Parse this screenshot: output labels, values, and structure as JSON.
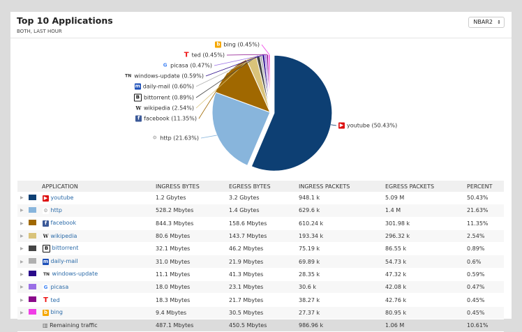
{
  "header": {
    "title": "Top 10 Applications",
    "subtitle": "BOTH, LAST HOUR",
    "select_value": "NBAR2"
  },
  "chart_data": {
    "type": "pie",
    "slices": [
      {
        "name": "youtube",
        "percent": 50.43,
        "color": "#0d3f73",
        "label": "youtube (50.43%)"
      },
      {
        "name": "http",
        "percent": 21.63,
        "color": "#88b5dc",
        "label": "http (21.63%)"
      },
      {
        "name": "facebook",
        "percent": 11.35,
        "color": "#a06800",
        "label": "facebook (11.35%)"
      },
      {
        "name": "wikipedia",
        "percent": 2.54,
        "color": "#d9c37a",
        "label": "wikipedia (2.54%)"
      },
      {
        "name": "bittorrent",
        "percent": 0.89,
        "color": "#444444",
        "label": "bittorrent (0.89%)"
      },
      {
        "name": "daily-mail",
        "percent": 0.6,
        "color": "#b0b0b0",
        "label": "daily-mail (0.60%)"
      },
      {
        "name": "windows-update",
        "percent": 0.59,
        "color": "#2a0a8a",
        "label": "windows-update (0.59%)"
      },
      {
        "name": "picasa",
        "percent": 0.47,
        "color": "#9a6fe6",
        "label": "picasa (0.47%)"
      },
      {
        "name": "ted",
        "percent": 0.45,
        "color": "#8a0a8a",
        "label": "ted (0.45%)"
      },
      {
        "name": "bing",
        "percent": 0.45,
        "color": "#f03ce6",
        "label": "bing (0.45%)"
      }
    ]
  },
  "table": {
    "headers": [
      "APPLICATION",
      "INGRESS BYTES",
      "EGRESS BYTES",
      "INGRESS PACKETS",
      "EGRESS PACKETS",
      "PERCENT"
    ],
    "rows": [
      {
        "app": "youtube",
        "icon": "youtube-icon",
        "ingress_bytes": "1.2 Gbytes",
        "egress_bytes": "3.2 Gbytes",
        "ingress_packets": "948.1 k",
        "egress_packets": "5.09 M",
        "percent": "50.43%"
      },
      {
        "app": "http",
        "icon": "globe-icon",
        "ingress_bytes": "528.2 Mbytes",
        "egress_bytes": "1.4 Gbytes",
        "ingress_packets": "629.6 k",
        "egress_packets": "1.4 M",
        "percent": "21.63%"
      },
      {
        "app": "facebook",
        "icon": "facebook-icon",
        "ingress_bytes": "844.3 Mbytes",
        "egress_bytes": "158.6 Mbytes",
        "ingress_packets": "610.24 k",
        "egress_packets": "301.98 k",
        "percent": "11.35%"
      },
      {
        "app": "wikipedia",
        "icon": "wikipedia-icon",
        "ingress_bytes": "80.6 Mbytes",
        "egress_bytes": "143.7 Mbytes",
        "ingress_packets": "193.34 k",
        "egress_packets": "296.32 k",
        "percent": "2.54%"
      },
      {
        "app": "bittorrent",
        "icon": "bittorrent-icon",
        "ingress_bytes": "32.1 Mbytes",
        "egress_bytes": "46.2 Mbytes",
        "ingress_packets": "75.19 k",
        "egress_packets": "86.55 k",
        "percent": "0.89%"
      },
      {
        "app": "daily-mail",
        "icon": "daily-mail-icon",
        "ingress_bytes": "31.0 Mbytes",
        "egress_bytes": "21.9 Mbytes",
        "ingress_packets": "69.89 k",
        "egress_packets": "54.73 k",
        "percent": "0.6%"
      },
      {
        "app": "windows-update",
        "icon": "windows-update-icon",
        "ingress_bytes": "11.1 Mbytes",
        "egress_bytes": "41.3 Mbytes",
        "ingress_packets": "28.35 k",
        "egress_packets": "47.32 k",
        "percent": "0.59%"
      },
      {
        "app": "picasa",
        "icon": "google-icon",
        "ingress_bytes": "18.0 Mbytes",
        "egress_bytes": "23.1 Mbytes",
        "ingress_packets": "30.6 k",
        "egress_packets": "42.08 k",
        "percent": "0.47%"
      },
      {
        "app": "ted",
        "icon": "ted-icon",
        "ingress_bytes": "18.3 Mbytes",
        "egress_bytes": "21.7 Mbytes",
        "ingress_packets": "38.27 k",
        "egress_packets": "42.76 k",
        "percent": "0.45%"
      },
      {
        "app": "bing",
        "icon": "bing-icon",
        "ingress_bytes": "9.4 Mbytes",
        "egress_bytes": "30.5 Mbytes",
        "ingress_packets": "27.37 k",
        "egress_packets": "80.95 k",
        "percent": "0.45%"
      }
    ],
    "remaining": {
      "app": "Remaining traffic",
      "ingress_bytes": "487.1 Mbytes",
      "egress_bytes": "450.5 Mbytes",
      "ingress_packets": "986.96 k",
      "egress_packets": "1.06 M",
      "percent": "10.61%"
    }
  }
}
